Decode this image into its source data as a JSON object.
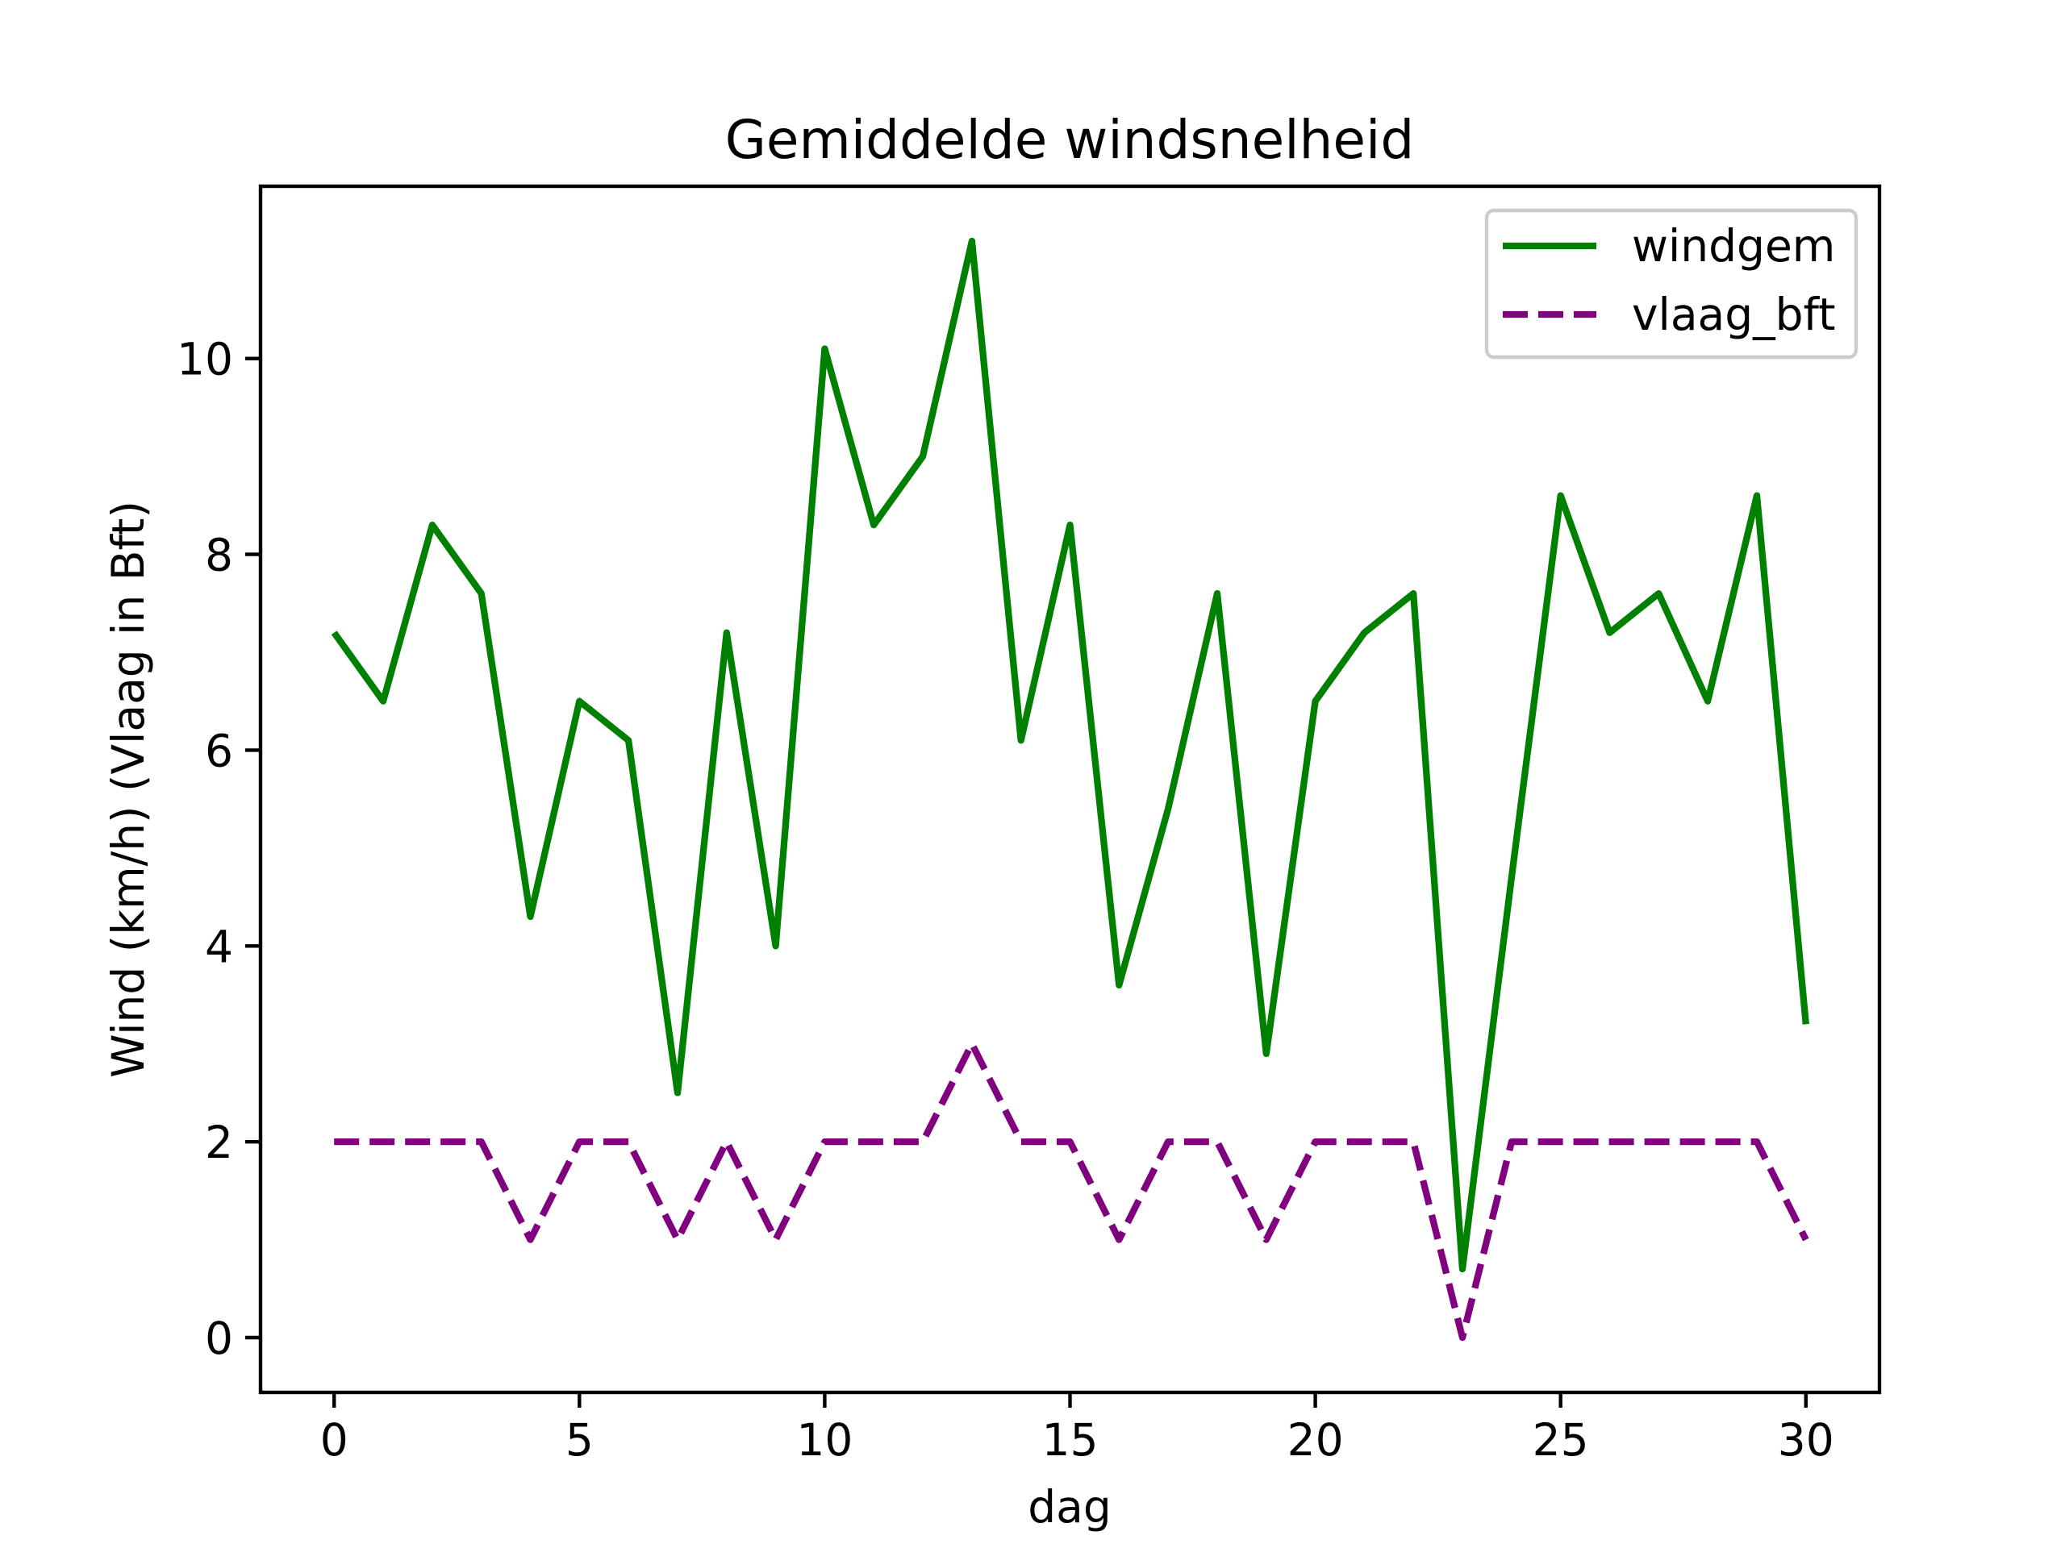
{
  "chart_data": {
    "type": "line",
    "title": "Gemiddelde windsnelheid",
    "xlabel": "dag",
    "ylabel": "Wind (km/h) (Vlaag in Bft)",
    "xlim": [
      -1.5,
      31.5
    ],
    "ylim": [
      -0.56,
      11.76
    ],
    "xticks": [
      0,
      5,
      10,
      15,
      20,
      25,
      30
    ],
    "yticks": [
      0,
      2,
      4,
      6,
      8,
      10
    ],
    "grid": false,
    "legend_position": "top-right",
    "x": [
      0,
      1,
      2,
      3,
      4,
      5,
      6,
      7,
      8,
      9,
      10,
      11,
      12,
      13,
      14,
      15,
      16,
      17,
      18,
      19,
      20,
      21,
      22,
      23,
      24,
      25,
      26,
      27,
      28,
      29,
      30
    ],
    "series": [
      {
        "name": "windgem",
        "color": "#008000",
        "style": "solid",
        "values": [
          7.2,
          6.5,
          8.3,
          7.6,
          4.3,
          6.5,
          6.1,
          2.5,
          7.2,
          4.0,
          10.1,
          8.3,
          9.0,
          11.2,
          6.1,
          8.3,
          3.6,
          5.4,
          7.6,
          2.9,
          6.5,
          7.2,
          7.6,
          0.7,
          4.7,
          8.6,
          7.2,
          7.6,
          6.5,
          8.6,
          3.2
        ]
      },
      {
        "name": "vlaag_bft",
        "color": "#800080",
        "style": "dashed",
        "values": [
          2,
          2,
          2,
          2,
          1,
          2,
          2,
          1,
          2,
          1,
          2,
          2,
          2,
          3,
          2,
          2,
          1,
          2,
          2,
          1,
          2,
          2,
          2,
          0,
          2,
          2,
          2,
          2,
          2,
          2,
          1
        ]
      }
    ]
  }
}
